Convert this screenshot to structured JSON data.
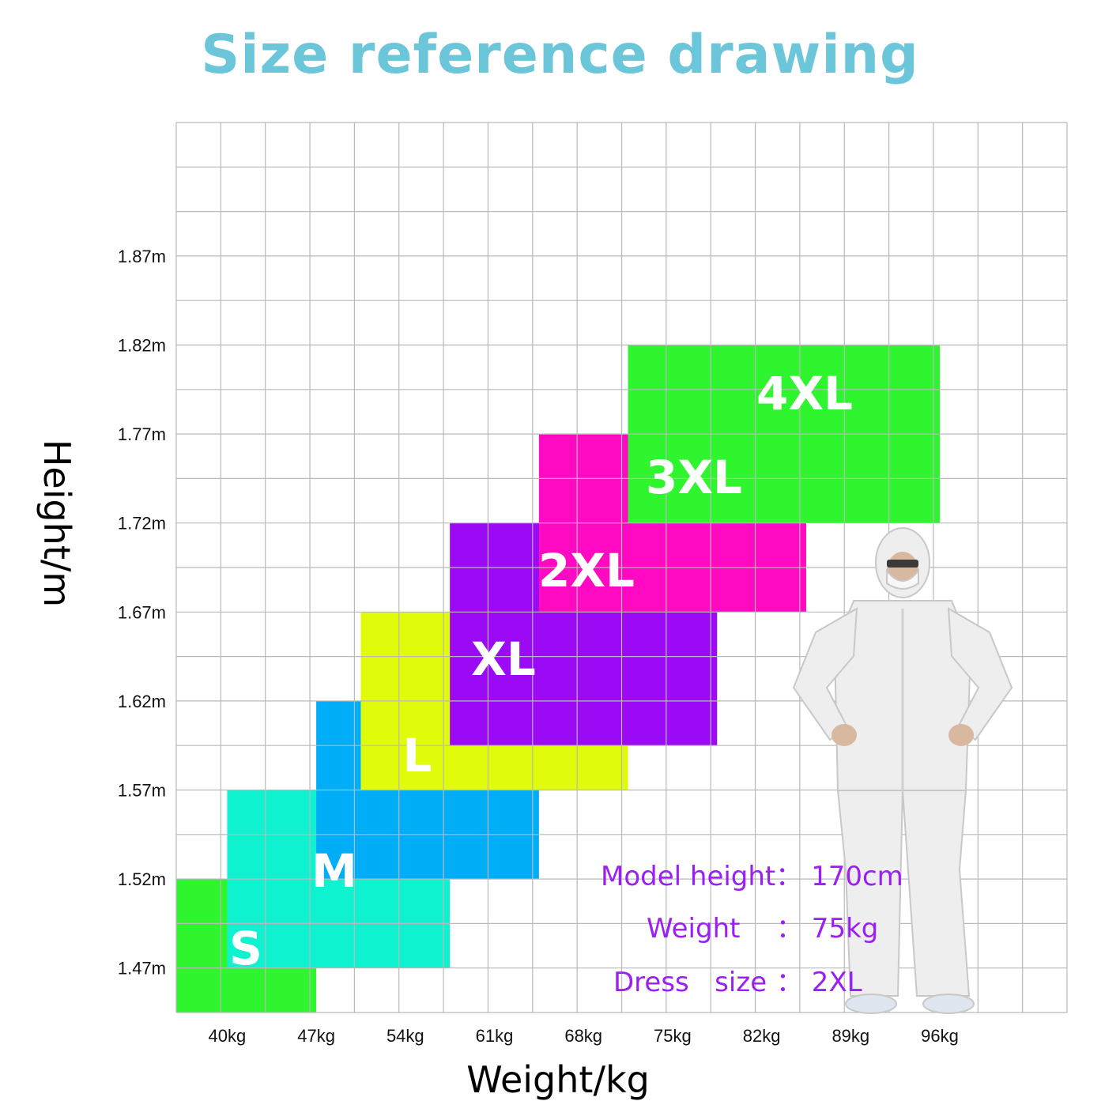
{
  "title": "Size reference drawing",
  "colors": {
    "title": "#6cc6d9",
    "grid": "#b9b9b9",
    "info_text": "#9b1ff2",
    "S": "#2ff52f",
    "M": "#0ff2d0",
    "L": "#00adf7",
    "XL": "#e0fc0b",
    "2XL": "#9b09f5",
    "3XL": "#ff09c3",
    "4XL": "#2ff52f"
  },
  "chart_data": {
    "type": "heatmap",
    "title": "Size reference drawing",
    "xlabel": "Weight/kg",
    "ylabel": "Height/m",
    "x_ticks": [
      {
        "label": "40kg",
        "value": 40
      },
      {
        "label": "47kg",
        "value": 47
      },
      {
        "label": "54kg",
        "value": 54
      },
      {
        "label": "61kg",
        "value": 61
      },
      {
        "label": "68kg",
        "value": 68
      },
      {
        "label": "75kg",
        "value": 75
      },
      {
        "label": "82kg",
        "value": 82
      },
      {
        "label": "89kg",
        "value": 89
      },
      {
        "label": "96kg",
        "value": 96
      }
    ],
    "y_ticks": [
      {
        "label": "1.87m",
        "value": 1.87
      },
      {
        "label": "1.82m",
        "value": 1.82
      },
      {
        "label": "1.77m",
        "value": 1.77
      },
      {
        "label": "1.72m",
        "value": 1.72
      },
      {
        "label": "1.67m",
        "value": 1.67
      },
      {
        "label": "1.62m",
        "value": 1.62
      },
      {
        "label": "1.57m",
        "value": 1.57
      },
      {
        "label": "1.52m",
        "value": 1.52
      },
      {
        "label": "1.47m",
        "value": 1.47
      }
    ],
    "xlim": [
      36,
      106
    ],
    "ylim": [
      1.445,
      1.945
    ],
    "grid": true,
    "sizes": [
      {
        "label": "S",
        "weight": [
          36,
          47
        ],
        "height": [
          1.445,
          1.52
        ]
      },
      {
        "label": "M",
        "weight": [
          40,
          57.5
        ],
        "height": [
          1.47,
          1.57
        ]
      },
      {
        "label": "L",
        "weight": [
          47,
          64.5
        ],
        "height": [
          1.52,
          1.62
        ]
      },
      {
        "label": "XL",
        "weight": [
          50.5,
          71.5
        ],
        "height": [
          1.57,
          1.67
        ]
      },
      {
        "label": "2XL",
        "weight": [
          57.5,
          78.5
        ],
        "height": [
          1.595,
          1.72
        ]
      },
      {
        "label": "3XL",
        "weight": [
          64.5,
          85.5
        ],
        "height": [
          1.67,
          1.77
        ]
      },
      {
        "label": "4XL",
        "weight": [
          71.5,
          96
        ],
        "height": [
          1.72,
          1.82
        ]
      }
    ]
  },
  "model_info": {
    "height_line": "Model height： 170cm",
    "weight_label": "Weight",
    "weight_value": "： 75kg",
    "size_label": "Dress   size",
    "size_value": "： 2XL"
  }
}
